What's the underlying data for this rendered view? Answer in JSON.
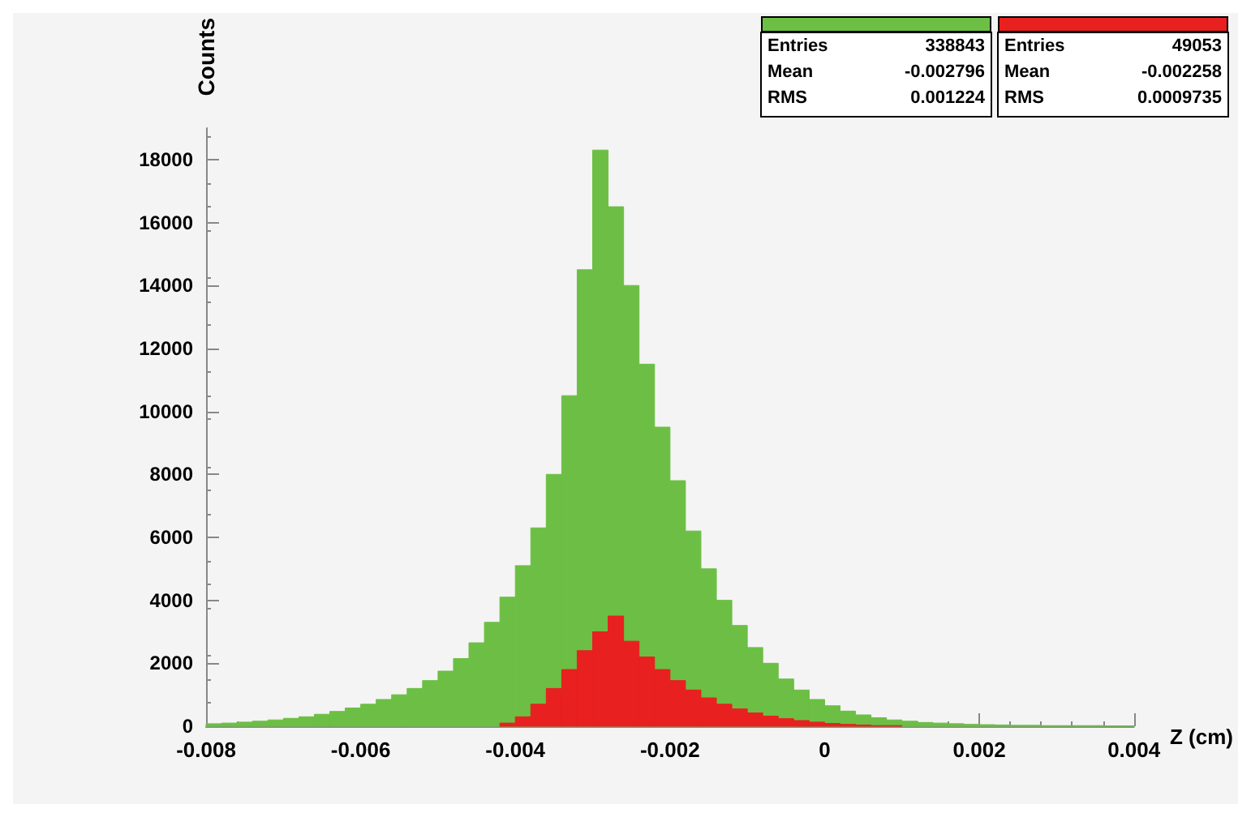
{
  "chart_data": {
    "type": "histogram",
    "xlabel": "Z (cm)",
    "ylabel": "Counts",
    "bins": [
      -0.008,
      -0.0078,
      -0.0076,
      -0.0074,
      -0.0072,
      -0.007,
      -0.0068,
      -0.0066,
      -0.0064,
      -0.0062,
      -0.006,
      -0.0058,
      -0.0056,
      -0.0054,
      -0.0052,
      -0.005,
      -0.0048,
      -0.0046,
      -0.0044,
      -0.0042,
      -0.004,
      -0.0038,
      -0.0036,
      -0.0034,
      -0.0032,
      -0.003,
      -0.0028,
      -0.0026,
      -0.0024,
      -0.0022,
      -0.002,
      -0.0018,
      -0.0016,
      -0.0014,
      -0.0012,
      -0.001,
      -0.0008,
      -0.0006,
      -0.0004,
      -0.0002,
      0,
      0.0002,
      0.0004,
      0.0006,
      0.0008,
      0.001,
      0.0012,
      0.0014,
      0.0016,
      0.0018,
      0.002,
      0.0022,
      0.0024,
      0.0026,
      0.0028,
      0.003,
      0.0032,
      0.0034,
      0.0036,
      0.0038,
      0.004
    ],
    "series": [
      {
        "color": "#6cbf44",
        "values": [
          80,
          100,
          130,
          160,
          200,
          250,
          300,
          380,
          470,
          580,
          700,
          850,
          1000,
          1200,
          1450,
          1750,
          2150,
          2650,
          3300,
          4100,
          5100,
          6300,
          8000,
          10500,
          14500,
          18300,
          16500,
          14000,
          11500,
          9500,
          7800,
          6200,
          5000,
          4000,
          3200,
          2500,
          2000,
          1500,
          1150,
          850,
          650,
          480,
          360,
          270,
          200,
          160,
          120,
          100,
          80,
          60,
          50,
          40,
          30,
          30,
          20,
          20,
          20,
          20,
          10,
          10
        ]
      },
      {
        "color": "#e82020",
        "values": [
          null,
          null,
          null,
          null,
          null,
          null,
          null,
          null,
          null,
          null,
          null,
          null,
          null,
          null,
          null,
          null,
          null,
          null,
          null,
          100,
          300,
          700,
          1200,
          1800,
          2400,
          3000,
          3500,
          2700,
          2200,
          1800,
          1450,
          1150,
          900,
          700,
          550,
          420,
          320,
          240,
          180,
          130,
          90,
          60,
          40,
          20,
          20,
          null,
          null,
          null,
          null,
          null,
          null,
          null,
          null,
          null,
          null,
          null,
          null,
          null,
          null,
          null
        ]
      }
    ],
    "annotations": [
      "Entries 338843",
      "Mean -0.002796",
      "RMS 0.001224",
      "Entries 49053",
      "Mean -0.002258",
      "RMS 0.0009735"
    ],
    "xlim": [
      -0.008,
      0.004
    ],
    "xticks": [
      -0.008,
      -0.006,
      -0.004,
      -0.002,
      0,
      0.002,
      0.004
    ],
    "ylim": [
      0,
      19000
    ],
    "yticks": [
      0,
      2000,
      4000,
      6000,
      8000,
      10000,
      12000,
      14000,
      16000,
      18000
    ],
    "grid": false
  }
}
